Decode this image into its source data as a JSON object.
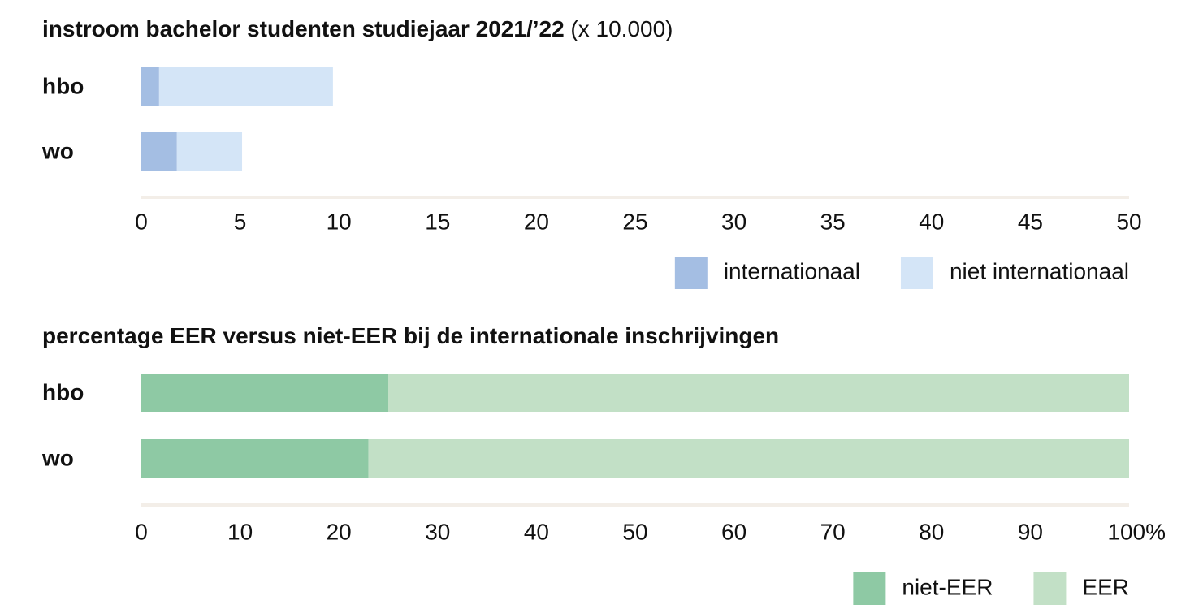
{
  "chart_data": [
    {
      "type": "stacked_bar_horizontal",
      "title": "instroom bachelor studenten studiejaar 2021/’22",
      "unit": " (x 10.000)",
      "categories": [
        "hbo",
        "wo"
      ],
      "series": [
        {
          "name": "internationaal",
          "color": "#a4bee3",
          "values": [
            0.9,
            1.8
          ]
        },
        {
          "name": "niet internationaal",
          "color": "#d4e5f7",
          "values": [
            8.8,
            3.3
          ]
        }
      ],
      "xlim": [
        0,
        50
      ],
      "xticks": [
        0,
        5,
        10,
        15,
        20,
        25,
        30,
        35,
        40,
        45,
        50
      ]
    },
    {
      "type": "stacked_bar_horizontal",
      "title": "percentage EER versus niet-EER bij de internationale inschrijvingen",
      "categories": [
        "hbo",
        "wo"
      ],
      "series": [
        {
          "name": "niet-EER",
          "color": "#8ec9a4",
          "values": [
            25,
            23
          ]
        },
        {
          "name": "EER",
          "color": "#c2e0c6",
          "values": [
            75,
            77
          ]
        }
      ],
      "xlim": [
        0,
        100
      ],
      "xticks": [
        0,
        10,
        20,
        30,
        40,
        50,
        60,
        70,
        80,
        90,
        {
          "value": 100,
          "label": "100%"
        }
      ]
    }
  ]
}
